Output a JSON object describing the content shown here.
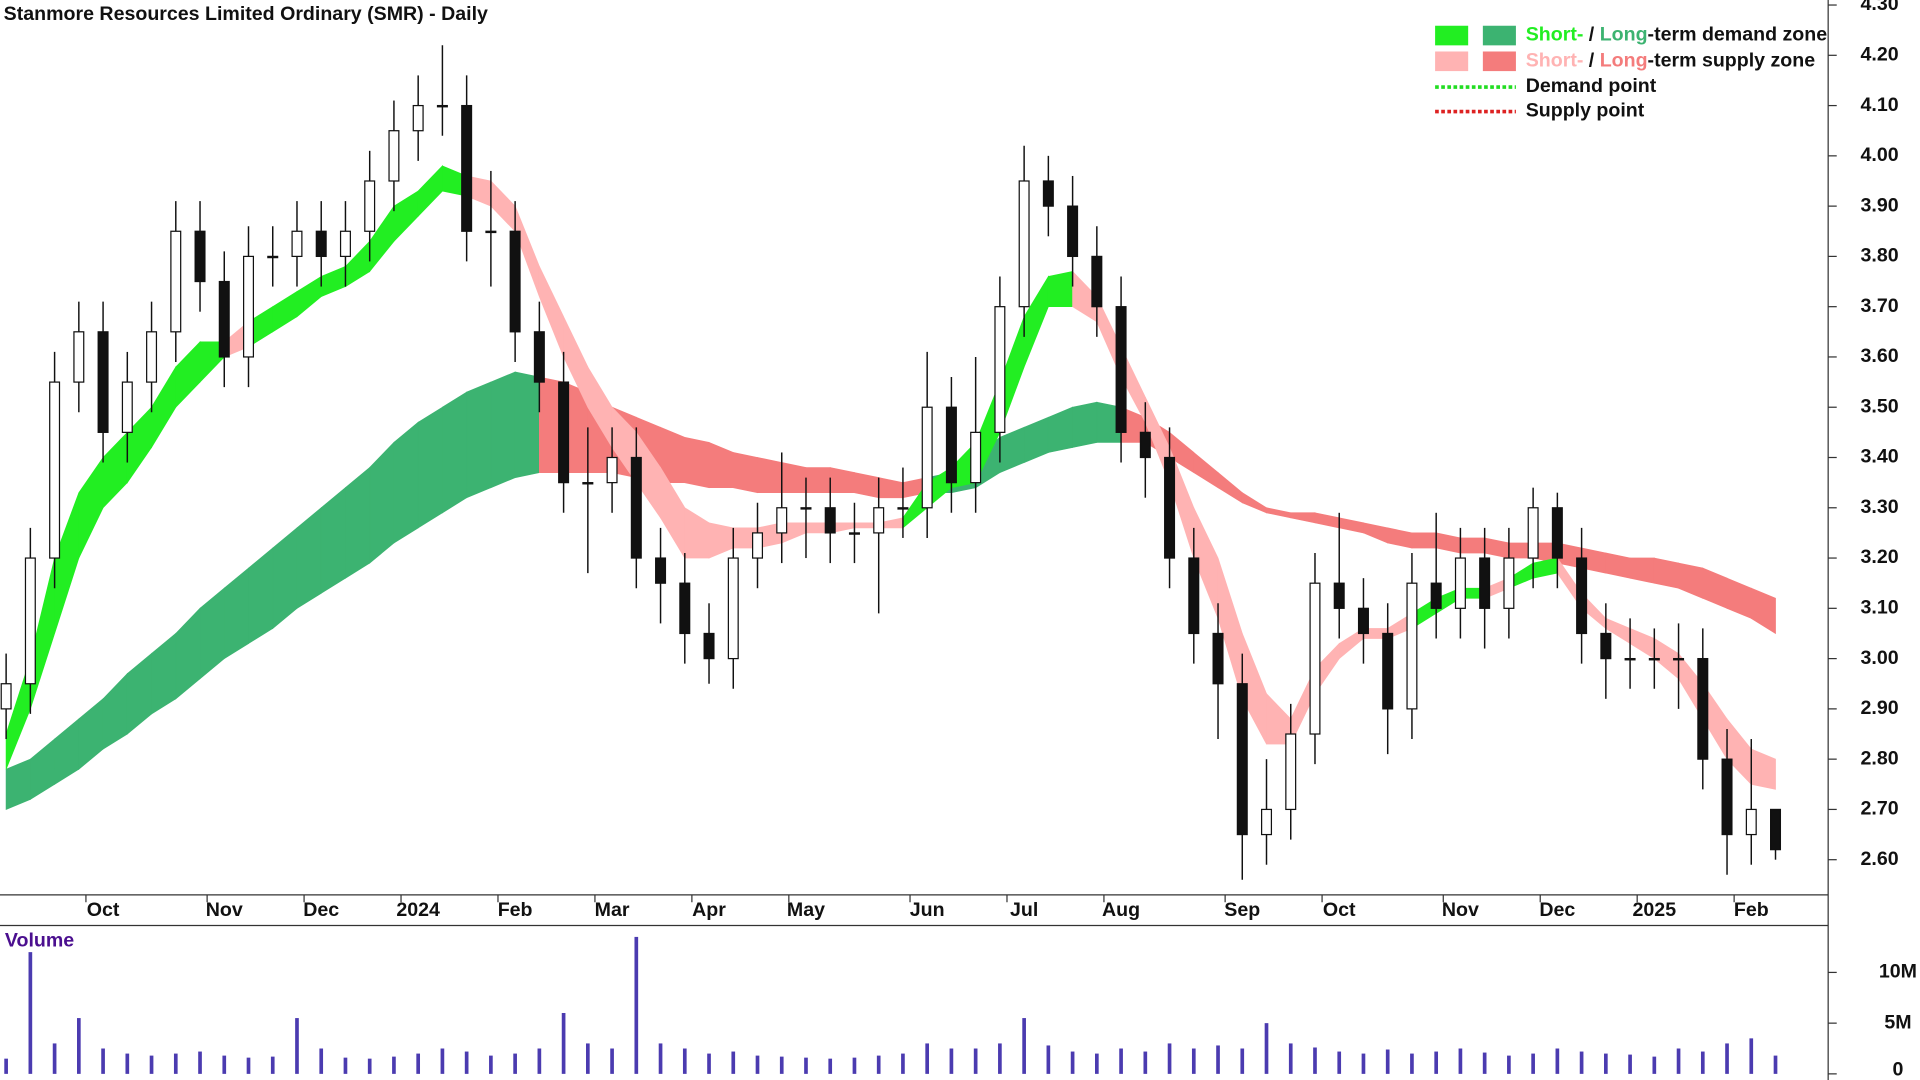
{
  "chart_data": {
    "type": "candlestick",
    "title": "Stanmore Resources Limited Ordinary (SMR) - Daily",
    "categories": [
      null,
      null,
      null,
      null,
      "Oct",
      null,
      null,
      null,
      null,
      "Nov",
      null,
      null,
      null,
      "Dec",
      null,
      null,
      null,
      "2024",
      null,
      null,
      null,
      "Feb",
      null,
      null,
      null,
      "Mar",
      null,
      null,
      null,
      "Apr",
      null,
      null,
      null,
      "May",
      null,
      null,
      null,
      null,
      "Jun",
      null,
      null,
      null,
      "Jul",
      null,
      null,
      null,
      "Aug",
      null,
      null,
      null,
      null,
      "Sep",
      null,
      null,
      null,
      "Oct",
      null,
      null,
      null,
      null,
      "Nov",
      null,
      null,
      null,
      "Dec",
      null,
      null,
      null,
      "2025",
      null,
      null,
      null,
      "Feb",
      null
    ],
    "open": [
      2.9,
      2.95,
      3.2,
      3.55,
      3.65,
      3.45,
      3.55,
      3.65,
      3.85,
      3.75,
      3.6,
      3.8,
      3.8,
      3.85,
      3.8,
      3.85,
      3.95,
      4.05,
      4.1,
      4.1,
      3.85,
      3.85,
      3.65,
      3.55,
      3.35,
      3.35,
      3.4,
      3.2,
      3.15,
      3.05,
      3.0,
      3.2,
      3.25,
      3.3,
      3.3,
      3.25,
      3.25,
      3.3,
      3.3,
      3.5,
      3.35,
      3.45,
      3.7,
      3.95,
      3.9,
      3.8,
      3.7,
      3.45,
      3.4,
      3.2,
      3.05,
      2.95,
      2.65,
      2.7,
      2.85,
      3.15,
      3.1,
      3.05,
      2.9,
      3.15,
      3.1,
      3.2,
      3.1,
      3.2,
      3.3,
      3.2,
      3.05,
      3.0,
      3.0,
      3.0,
      3.0,
      2.8,
      2.65,
      2.7
    ],
    "high": [
      3.01,
      3.26,
      3.61,
      3.71,
      3.71,
      3.61,
      3.71,
      3.91,
      3.91,
      3.81,
      3.86,
      3.86,
      3.91,
      3.91,
      3.91,
      4.01,
      4.11,
      4.16,
      4.22,
      4.16,
      3.97,
      3.91,
      3.71,
      3.61,
      3.46,
      3.46,
      3.46,
      3.26,
      3.21,
      3.11,
      3.26,
      3.31,
      3.41,
      3.36,
      3.36,
      3.31,
      3.36,
      3.38,
      3.61,
      3.56,
      3.6,
      3.76,
      4.02,
      4.0,
      3.96,
      3.86,
      3.76,
      3.51,
      3.46,
      3.26,
      3.11,
      3.01,
      2.8,
      2.91,
      3.21,
      3.29,
      3.16,
      3.11,
      3.21,
      3.29,
      3.26,
      3.26,
      3.26,
      3.34,
      3.33,
      3.26,
      3.11,
      3.08,
      3.06,
      3.07,
      3.06,
      2.86,
      2.84,
      2.7
    ],
    "low": [
      2.84,
      2.89,
      3.14,
      3.49,
      3.39,
      3.39,
      3.49,
      3.59,
      3.69,
      3.54,
      3.54,
      3.74,
      3.74,
      3.74,
      3.74,
      3.79,
      3.89,
      3.99,
      4.04,
      3.79,
      3.74,
      3.59,
      3.49,
      3.29,
      3.17,
      3.29,
      3.14,
      3.07,
      2.99,
      2.95,
      2.94,
      3.14,
      3.19,
      3.2,
      3.19,
      3.19,
      3.09,
      3.24,
      3.24,
      3.29,
      3.29,
      3.39,
      3.64,
      3.84,
      3.74,
      3.64,
      3.39,
      3.32,
      3.14,
      2.99,
      2.84,
      2.56,
      2.59,
      2.64,
      2.79,
      3.04,
      2.99,
      2.81,
      2.84,
      3.04,
      3.04,
      3.02,
      3.04,
      3.14,
      3.14,
      2.99,
      2.92,
      2.94,
      2.94,
      2.9,
      2.74,
      2.57,
      2.59,
      2.6
    ],
    "close": [
      2.95,
      3.2,
      3.55,
      3.65,
      3.45,
      3.55,
      3.65,
      3.85,
      3.75,
      3.6,
      3.8,
      3.8,
      3.85,
      3.8,
      3.85,
      3.95,
      4.05,
      4.1,
      4.1,
      3.85,
      3.85,
      3.65,
      3.55,
      3.35,
      3.35,
      3.4,
      3.2,
      3.15,
      3.05,
      3.0,
      3.2,
      3.25,
      3.3,
      3.3,
      3.25,
      3.25,
      3.3,
      3.3,
      3.5,
      3.35,
      3.45,
      3.7,
      3.95,
      3.9,
      3.8,
      3.7,
      3.45,
      3.4,
      3.2,
      3.05,
      2.95,
      2.65,
      2.7,
      2.85,
      3.15,
      3.1,
      3.05,
      2.9,
      3.15,
      3.1,
      3.2,
      3.1,
      3.2,
      3.3,
      3.2,
      3.05,
      3.0,
      3.0,
      3.0,
      3.0,
      2.8,
      2.65,
      2.7,
      2.62
    ],
    "ylim": [
      2.53,
      4.31
    ],
    "yticks": [
      {
        "value": 2.6,
        "label": "2.60"
      },
      {
        "value": 2.7,
        "label": "2.70"
      },
      {
        "value": 2.8,
        "label": "2.80"
      },
      {
        "value": 2.9,
        "label": "2.90"
      },
      {
        "value": 3.0,
        "label": "3.00"
      },
      {
        "value": 3.1,
        "label": "3.10"
      },
      {
        "value": 3.2,
        "label": "3.20"
      },
      {
        "value": 3.3,
        "label": "3.30"
      },
      {
        "value": 3.4,
        "label": "3.40"
      },
      {
        "value": 3.5,
        "label": "3.50"
      },
      {
        "value": 3.6,
        "label": "3.60"
      },
      {
        "value": 3.7,
        "label": "3.70"
      },
      {
        "value": 3.8,
        "label": "3.80"
      },
      {
        "value": 3.9,
        "label": "3.90"
      },
      {
        "value": 4.0,
        "label": "4.00"
      },
      {
        "value": 4.1,
        "label": "4.10"
      },
      {
        "value": 4.2,
        "label": "4.20"
      },
      {
        "value": 4.3,
        "label": "4.30"
      }
    ],
    "zones": {
      "long": {
        "demand_color": "#3cb371",
        "supply_color": "#f47c7c",
        "upper": [
          2.78,
          2.8,
          2.84,
          2.88,
          2.92,
          2.97,
          3.01,
          3.05,
          3.1,
          3.14,
          3.18,
          3.22,
          3.26,
          3.3,
          3.34,
          3.38,
          3.43,
          3.47,
          3.5,
          3.53,
          3.55,
          3.57,
          3.56,
          3.55,
          3.53,
          3.5,
          3.48,
          3.46,
          3.44,
          3.43,
          3.41,
          3.4,
          3.39,
          3.38,
          3.38,
          3.37,
          3.36,
          3.35,
          3.36,
          3.37,
          3.4,
          3.44,
          3.46,
          3.48,
          3.5,
          3.51,
          3.5,
          3.48,
          3.45,
          3.41,
          3.37,
          3.33,
          3.3,
          3.29,
          3.29,
          3.28,
          3.27,
          3.26,
          3.25,
          3.25,
          3.24,
          3.24,
          3.23,
          3.23,
          3.23,
          3.22,
          3.21,
          3.2,
          3.2,
          3.19,
          3.18,
          3.16,
          3.14,
          3.12
        ],
        "lower": [
          2.7,
          2.72,
          2.75,
          2.78,
          2.82,
          2.85,
          2.89,
          2.92,
          2.96,
          3.0,
          3.03,
          3.06,
          3.1,
          3.13,
          3.16,
          3.19,
          3.23,
          3.26,
          3.29,
          3.32,
          3.34,
          3.36,
          3.37,
          3.37,
          3.37,
          3.37,
          3.36,
          3.35,
          3.35,
          3.34,
          3.34,
          3.33,
          3.33,
          3.33,
          3.33,
          3.33,
          3.32,
          3.32,
          3.33,
          3.33,
          3.34,
          3.37,
          3.39,
          3.41,
          3.42,
          3.43,
          3.43,
          3.43,
          3.4,
          3.37,
          3.34,
          3.31,
          3.29,
          3.28,
          3.27,
          3.26,
          3.25,
          3.23,
          3.22,
          3.22,
          3.21,
          3.21,
          3.2,
          3.2,
          3.19,
          3.18,
          3.17,
          3.16,
          3.15,
          3.14,
          3.12,
          3.1,
          3.08,
          3.05
        ],
        "state": [
          "demand",
          "demand",
          "demand",
          "demand",
          "demand",
          "demand",
          "demand",
          "demand",
          "demand",
          "demand",
          "demand",
          "demand",
          "demand",
          "demand",
          "demand",
          "demand",
          "demand",
          "demand",
          "demand",
          "demand",
          "demand",
          "demand",
          "supply",
          "supply",
          "supply",
          "supply",
          "supply",
          "supply",
          "supply",
          "supply",
          "supply",
          "supply",
          "supply",
          "supply",
          "supply",
          "supply",
          "supply",
          "supply",
          "demand",
          "demand",
          "demand",
          "demand",
          "demand",
          "demand",
          "demand",
          "demand",
          "supply",
          "supply",
          "supply",
          "supply",
          "supply",
          "supply",
          "supply",
          "supply",
          "supply",
          "supply",
          "supply",
          "supply",
          "supply",
          "supply",
          "supply",
          "supply",
          "supply",
          "supply",
          "supply",
          "supply",
          "supply",
          "supply",
          "supply",
          "supply",
          "supply",
          "supply",
          "supply",
          "supply"
        ]
      },
      "short": {
        "demand_color": "#22ee22",
        "supply_color": "#ffb3b3",
        "upper": [
          2.85,
          3.0,
          3.2,
          3.33,
          3.4,
          3.45,
          3.5,
          3.58,
          3.63,
          3.63,
          3.67,
          3.7,
          3.73,
          3.76,
          3.78,
          3.83,
          3.9,
          3.93,
          3.98,
          3.96,
          3.95,
          3.9,
          3.78,
          3.68,
          3.58,
          3.5,
          3.45,
          3.38,
          3.3,
          3.27,
          3.26,
          3.26,
          3.27,
          3.27,
          3.27,
          3.27,
          3.27,
          3.28,
          3.35,
          3.38,
          3.43,
          3.55,
          3.68,
          3.76,
          3.77,
          3.72,
          3.62,
          3.52,
          3.42,
          3.3,
          3.2,
          3.05,
          2.93,
          2.88,
          2.98,
          3.03,
          3.06,
          3.06,
          3.09,
          3.12,
          3.14,
          3.14,
          3.16,
          3.19,
          3.2,
          3.13,
          3.08,
          3.06,
          3.04,
          3.01,
          2.95,
          2.88,
          2.82,
          2.8
        ],
        "lower": [
          2.78,
          2.9,
          3.05,
          3.2,
          3.3,
          3.35,
          3.42,
          3.5,
          3.55,
          3.6,
          3.62,
          3.65,
          3.68,
          3.72,
          3.74,
          3.77,
          3.83,
          3.88,
          3.93,
          3.92,
          3.9,
          3.85,
          3.72,
          3.6,
          3.5,
          3.42,
          3.35,
          3.28,
          3.2,
          3.2,
          3.22,
          3.22,
          3.23,
          3.25,
          3.25,
          3.26,
          3.26,
          3.26,
          3.3,
          3.34,
          3.35,
          3.45,
          3.58,
          3.7,
          3.7,
          3.67,
          3.56,
          3.47,
          3.35,
          3.2,
          3.08,
          2.92,
          2.83,
          2.83,
          2.93,
          3.0,
          3.04,
          3.04,
          3.06,
          3.09,
          3.12,
          3.12,
          3.14,
          3.16,
          3.17,
          3.1,
          3.06,
          3.03,
          3.0,
          2.96,
          2.88,
          2.8,
          2.75,
          2.74
        ],
        "state": [
          "demand",
          "demand",
          "demand",
          "demand",
          "demand",
          "demand",
          "demand",
          "demand",
          "demand",
          "supply",
          "demand",
          "demand",
          "demand",
          "demand",
          "demand",
          "demand",
          "demand",
          "demand",
          "demand",
          "supply",
          "supply",
          "supply",
          "supply",
          "supply",
          "supply",
          "supply",
          "supply",
          "supply",
          "supply",
          "supply",
          "supply",
          "supply",
          "supply",
          "supply",
          "supply",
          "supply",
          "supply",
          "demand",
          "demand",
          "demand",
          "demand",
          "demand",
          "demand",
          "demand",
          "supply",
          "supply",
          "supply",
          "supply",
          "supply",
          "supply",
          "supply",
          "supply",
          "supply",
          "supply",
          "supply",
          "supply",
          "supply",
          "supply",
          "demand",
          "demand",
          "demand",
          "supply",
          "demand",
          "demand",
          "supply",
          "supply",
          "supply",
          "supply",
          "supply",
          "supply",
          "supply",
          "supply",
          "supply",
          "supply"
        ]
      }
    },
    "legend": {
      "position": "top-right",
      "demand_zone": {
        "short": "Short-",
        "sep": " / ",
        "long": "Long",
        "rest": "-term demand zone"
      },
      "supply_zone": {
        "short": "Short-",
        "sep": " / ",
        "long": "Long",
        "rest": "-term supply zone"
      },
      "demand_point": {
        "label": "Demand point",
        "color": "#22dd22"
      },
      "supply_point": {
        "label": "Supply point",
        "color": "#dd2222"
      }
    },
    "volume": {
      "label": "Volume",
      "color": "#4b3bb0",
      "values": [
        1500000,
        12000000,
        3000000,
        5500000,
        2500000,
        2000000,
        1800000,
        2000000,
        2200000,
        1800000,
        1600000,
        1700000,
        5500000,
        2500000,
        1600000,
        1500000,
        1700000,
        2000000,
        2500000,
        2200000,
        1800000,
        2000000,
        2500000,
        6000000,
        3000000,
        2500000,
        13500000,
        3000000,
        2500000,
        2000000,
        2200000,
        1800000,
        1700000,
        1600000,
        1500000,
        1600000,
        1800000,
        2000000,
        3000000,
        2500000,
        2500000,
        3000000,
        5500000,
        2800000,
        2200000,
        2000000,
        2500000,
        2200000,
        3000000,
        2500000,
        2800000,
        2500000,
        5000000,
        3000000,
        2600000,
        2200000,
        2000000,
        2400000,
        2000000,
        2200000,
        2500000,
        2100000,
        1800000,
        2000000,
        2500000,
        2200000,
        2000000,
        1900000,
        1700000,
        2500000,
        2200000,
        3000000,
        3500000,
        1800000
      ],
      "ylim": [
        0,
        14500000
      ],
      "yticks": [
        0,
        {
          "value": 5000000,
          "label": "5M"
        },
        {
          "value": 10000000,
          "label": "10M"
        }
      ]
    }
  }
}
